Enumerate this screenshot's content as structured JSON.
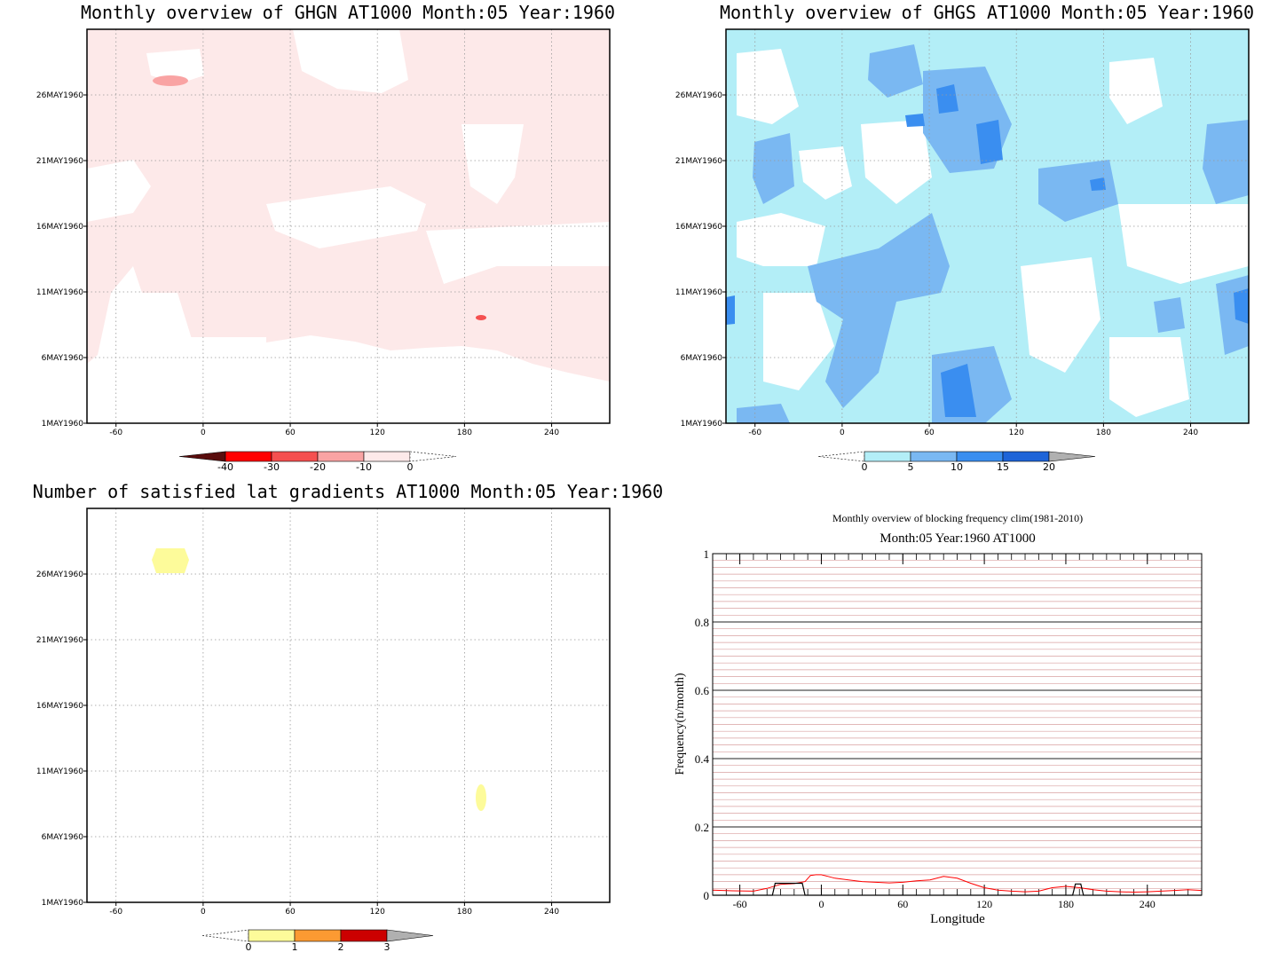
{
  "chart_data": [
    {
      "type": "heatmap",
      "title": "Monthly overview of GHGN AT1000 Month:05 Year:1960",
      "x_ticks": [
        "-60",
        "0",
        "60",
        "120",
        "180",
        "240"
      ],
      "x_tick_values": [
        -60,
        0,
        60,
        120,
        180,
        240
      ],
      "xlim": [
        -80,
        280
      ],
      "y_ticks": [
        "1MAY1960",
        "6MAY1960",
        "11MAY1960",
        "16MAY1960",
        "21MAY1960",
        "26MAY1960"
      ],
      "y_tick_values": [
        1,
        6,
        11,
        16,
        21,
        26
      ],
      "ylim": [
        1,
        31
      ],
      "grid": true,
      "fill_color": "#fde9e9",
      "colorbar": {
        "labels": [
          "-40",
          "-30",
          "-20",
          "-10",
          "0"
        ],
        "colors": [
          "#5a0d0d",
          "#ff0000",
          "#f55050",
          "#f9a3a3",
          "#fde9e9"
        ],
        "extend_low": true,
        "extend_high": true
      }
    },
    {
      "type": "heatmap",
      "title": "Monthly overview of GHGS AT1000 Month:05 Year:1960",
      "x_ticks": [
        "-60",
        "0",
        "60",
        "120",
        "180",
        "240"
      ],
      "x_tick_values": [
        -60,
        0,
        60,
        120,
        180,
        240
      ],
      "xlim": [
        -80,
        280
      ],
      "y_ticks": [
        "1MAY1960",
        "6MAY1960",
        "11MAY1960",
        "16MAY1960",
        "21MAY1960",
        "26MAY1960"
      ],
      "y_tick_values": [
        1,
        6,
        11,
        16,
        21,
        26
      ],
      "ylim": [
        1,
        31
      ],
      "grid": true,
      "fill_color": "#b3eef7",
      "colorbar": {
        "labels": [
          "0",
          "5",
          "10",
          "15",
          "20"
        ],
        "colors": [
          "#b3eef7",
          "#7ab8f2",
          "#3a8ef0",
          "#1e64d8",
          "#b0b0b0"
        ],
        "extend_low": true,
        "extend_high": true
      }
    },
    {
      "type": "heatmap",
      "title": "Number of satisfied lat gradients AT1000 Month:05 Year:1960",
      "x_ticks": [
        "-60",
        "0",
        "60",
        "120",
        "180",
        "240"
      ],
      "x_tick_values": [
        -60,
        0,
        60,
        120,
        180,
        240
      ],
      "xlim": [
        -80,
        280
      ],
      "y_ticks": [
        "1MAY1960",
        "6MAY1960",
        "11MAY1960",
        "16MAY1960",
        "21MAY1960",
        "26MAY1960"
      ],
      "y_tick_values": [
        1,
        6,
        11,
        16,
        21,
        26
      ],
      "ylim": [
        1,
        31
      ],
      "grid": true,
      "colorbar": {
        "labels": [
          "0",
          "1",
          "2",
          "3"
        ],
        "colors": [
          "#fdfb9a",
          "#fc9a32",
          "#cc0000",
          "#b0b0b0"
        ],
        "extend_low": true,
        "extend_high": true
      }
    },
    {
      "type": "line",
      "title": "Monthly overview of blocking frequency clim(1981-2010)",
      "subtitle": "Month:05 Year:1960  AT1000",
      "xlabel": "Longitude",
      "ylabel": "Frequency(n/month)",
      "xlim": [
        -80,
        280
      ],
      "ylim": [
        0,
        1
      ],
      "x_ticks": [
        "-60",
        "0",
        "60",
        "120",
        "180",
        "240"
      ],
      "x_tick_values": [
        -60,
        0,
        60,
        120,
        180,
        240
      ],
      "y_ticks": [
        "0",
        "0.2",
        "0.4",
        "0.6",
        "0.8",
        "1"
      ],
      "y_tick_values": [
        0,
        0.2,
        0.4,
        0.6,
        0.8,
        1
      ],
      "grid": true,
      "series": [
        {
          "color": "#ff0000",
          "x": [
            -80,
            -65,
            -50,
            -40,
            -30,
            -20,
            -12,
            -8,
            -4,
            0,
            5,
            10,
            20,
            30,
            40,
            50,
            60,
            70,
            80,
            90,
            100,
            110,
            120,
            130,
            140,
            150,
            160,
            170,
            180,
            190,
            200,
            210,
            220,
            230,
            240,
            250,
            260,
            270,
            280
          ],
          "y": [
            0.015,
            0.013,
            0.012,
            0.02,
            0.032,
            0.034,
            0.04,
            0.058,
            0.06,
            0.06,
            0.055,
            0.05,
            0.045,
            0.04,
            0.038,
            0.036,
            0.038,
            0.042,
            0.045,
            0.055,
            0.05,
            0.035,
            0.022,
            0.015,
            0.012,
            0.01,
            0.012,
            0.022,
            0.026,
            0.022,
            0.016,
            0.012,
            0.01,
            0.009,
            0.01,
            0.012,
            0.014,
            0.016,
            0.014
          ]
        },
        {
          "color": "#000000",
          "x": [
            -80,
            -36,
            -34,
            -14,
            -12,
            185,
            187,
            191,
            193,
            280
          ],
          "y": [
            0,
            0,
            0.035,
            0.035,
            0,
            0,
            0.033,
            0.033,
            0,
            0
          ]
        }
      ]
    }
  ]
}
